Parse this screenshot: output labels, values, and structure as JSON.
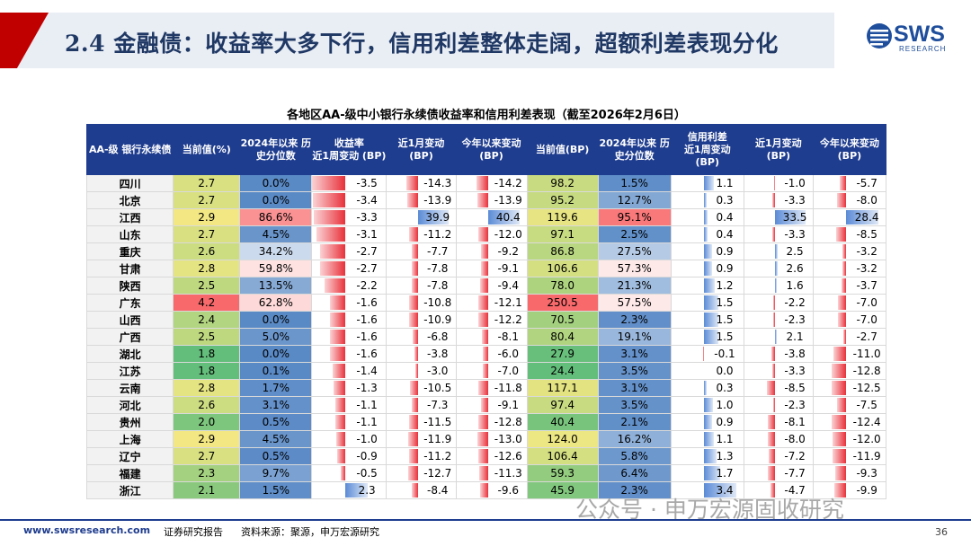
{
  "header": {
    "title": "2.4 金融债：收益率大多下行，信用利差整体走阔，超额利差表现分化"
  },
  "logo": {
    "name": "SWS",
    "sub": "RESEARCH"
  },
  "table": {
    "title": "各地区AA-级中小银行永续债收益率和信用利差表现（截至2026年2月6日）",
    "group_yield": "收益率",
    "group_spread": "信用利差",
    "columns": {
      "city": "AA-级 银行永续债",
      "y_cur": "当前值(%)",
      "pct_2024": "2024年以来 历史分位数",
      "wk": "近1周变动 (BP)",
      "mo": "近1月变动 (BP)",
      "ytd": "今年以来变动 (BP)",
      "s_cur": "当前值(BP)",
      "s_pct": "2024年以来 历史分位数",
      "s_wk": "近1周变动 (BP)",
      "s_mo": "近1月变动 (BP)",
      "s_ytd": "今年以来变动 (BP)"
    },
    "rows": [
      {
        "city": "四川",
        "y": "2.7",
        "yp": "0.0%",
        "yw": "-3.5",
        "ym": "-14.3",
        "yy": "-14.2",
        "s": "98.2",
        "sp": "1.5%",
        "sw": "1.1",
        "sm": "-1.0",
        "sy": "-5.7"
      },
      {
        "city": "北京",
        "y": "2.7",
        "yp": "0.0%",
        "yw": "-3.4",
        "ym": "-13.9",
        "yy": "-13.9",
        "s": "95.2",
        "sp": "12.7%",
        "sw": "0.3",
        "sm": "-3.3",
        "sy": "-8.0"
      },
      {
        "city": "江西",
        "y": "2.9",
        "yp": "86.6%",
        "yw": "-3.3",
        "ym": "39.9",
        "yy": "40.4",
        "s": "119.6",
        "sp": "95.1%",
        "sw": "0.4",
        "sm": "33.5",
        "sy": "28.4"
      },
      {
        "city": "山东",
        "y": "2.7",
        "yp": "4.5%",
        "yw": "-3.1",
        "ym": "-11.2",
        "yy": "-12.0",
        "s": "97.1",
        "sp": "2.5%",
        "sw": "0.4",
        "sm": "-3.3",
        "sy": "-8.5"
      },
      {
        "city": "重庆",
        "y": "2.6",
        "yp": "34.2%",
        "yw": "-2.7",
        "ym": "-7.7",
        "yy": "-9.2",
        "s": "86.8",
        "sp": "27.5%",
        "sw": "0.9",
        "sm": "2.5",
        "sy": "-3.2"
      },
      {
        "city": "甘肃",
        "y": "2.8",
        "yp": "59.8%",
        "yw": "-2.7",
        "ym": "-7.8",
        "yy": "-9.1",
        "s": "106.6",
        "sp": "57.3%",
        "sw": "0.9",
        "sm": "2.6",
        "sy": "-3.2"
      },
      {
        "city": "陕西",
        "y": "2.5",
        "yp": "13.5%",
        "yw": "-2.2",
        "ym": "-7.8",
        "yy": "-9.4",
        "s": "78.0",
        "sp": "21.3%",
        "sw": "1.2",
        "sm": "1.6",
        "sy": "-3.7"
      },
      {
        "city": "广东",
        "y": "4.2",
        "yp": "62.8%",
        "yw": "-1.6",
        "ym": "-10.8",
        "yy": "-12.1",
        "s": "250.5",
        "sp": "57.5%",
        "sw": "1.5",
        "sm": "-2.2",
        "sy": "-7.0"
      },
      {
        "city": "山西",
        "y": "2.4",
        "yp": "0.0%",
        "yw": "-1.6",
        "ym": "-10.9",
        "yy": "-12.2",
        "s": "70.5",
        "sp": "2.3%",
        "sw": "1.5",
        "sm": "-2.3",
        "sy": "-7.0"
      },
      {
        "city": "广西",
        "y": "2.5",
        "yp": "5.0%",
        "yw": "-1.6",
        "ym": "-6.8",
        "yy": "-8.1",
        "s": "80.4",
        "sp": "19.1%",
        "sw": "1.5",
        "sm": "2.1",
        "sy": "-2.7"
      },
      {
        "city": "湖北",
        "y": "1.8",
        "yp": "0.0%",
        "yw": "-1.6",
        "ym": "-3.8",
        "yy": "-6.0",
        "s": "27.9",
        "sp": "3.1%",
        "sw": "-0.1",
        "sm": "-3.8",
        "sy": "-11.0"
      },
      {
        "city": "江苏",
        "y": "1.8",
        "yp": "0.1%",
        "yw": "-1.4",
        "ym": "-3.0",
        "yy": "-7.0",
        "s": "24.4",
        "sp": "3.5%",
        "sw": "0.0",
        "sm": "-3.3",
        "sy": "-12.8"
      },
      {
        "city": "云南",
        "y": "2.8",
        "yp": "1.7%",
        "yw": "-1.3",
        "ym": "-10.5",
        "yy": "-11.8",
        "s": "117.1",
        "sp": "3.1%",
        "sw": "0.3",
        "sm": "-8.5",
        "sy": "-12.5"
      },
      {
        "city": "河北",
        "y": "2.6",
        "yp": "3.1%",
        "yw": "-1.1",
        "ym": "-7.3",
        "yy": "-9.1",
        "s": "97.4",
        "sp": "3.5%",
        "sw": "1.0",
        "sm": "-2.3",
        "sy": "-7.5"
      },
      {
        "city": "贵州",
        "y": "2.0",
        "yp": "0.5%",
        "yw": "-1.1",
        "ym": "-11.5",
        "yy": "-12.8",
        "s": "40.4",
        "sp": "2.1%",
        "sw": "0.9",
        "sm": "-8.1",
        "sy": "-12.4"
      },
      {
        "city": "上海",
        "y": "2.9",
        "yp": "4.5%",
        "yw": "-1.0",
        "ym": "-11.9",
        "yy": "-13.0",
        "s": "124.0",
        "sp": "16.2%",
        "sw": "1.1",
        "sm": "-8.0",
        "sy": "-12.0"
      },
      {
        "city": "辽宁",
        "y": "2.7",
        "yp": "0.5%",
        "yw": "-0.9",
        "ym": "-11.2",
        "yy": "-12.6",
        "s": "106.4",
        "sp": "5.8%",
        "sw": "1.3",
        "sm": "-7.2",
        "sy": "-11.9"
      },
      {
        "city": "福建",
        "y": "2.3",
        "yp": "9.7%",
        "yw": "-0.5",
        "ym": "-12.7",
        "yy": "-11.3",
        "s": "59.3",
        "sp": "6.4%",
        "sw": "1.7",
        "sm": "-7.7",
        "sy": "-9.3"
      },
      {
        "city": "浙江",
        "y": "2.1",
        "yp": "1.5%",
        "yw": "2.3",
        "ym": "-8.4",
        "yy": "-9.6",
        "s": "45.9",
        "sp": "2.3%",
        "sw": "3.4",
        "sm": "-4.7",
        "sy": "-9.9"
      }
    ]
  },
  "footer": {
    "url": "www.swsresearch.com",
    "report": "证券研究报告",
    "source": "资料来源：聚源，申万宏源研究",
    "page": "36"
  },
  "watermark": "公众号 · 申万宏源固收研究",
  "colors": {
    "header_blue": "#1f3d8f",
    "bar_red": "#e8313a",
    "bar_blue": "#5b8bd6",
    "heat_red": "#f8696b",
    "heat_yellow": "#ffeb84",
    "heat_green": "#63be7b",
    "pct_blue": "#5a8ac6"
  }
}
